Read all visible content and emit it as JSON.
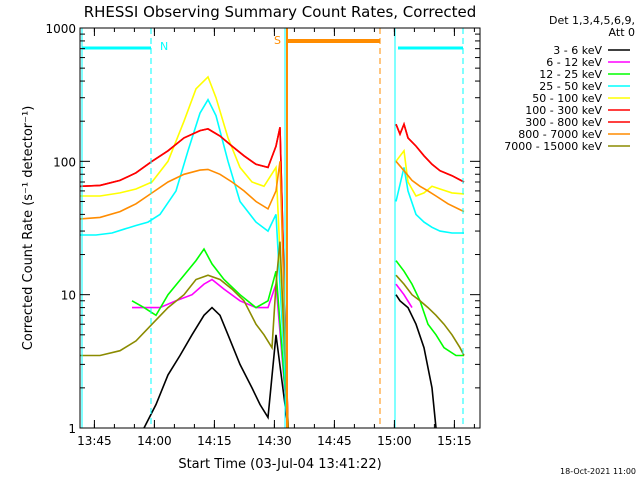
{
  "chart_data": {
    "type": "line",
    "title": "RHESSI Observing Summary Count Rates, Corrected",
    "xlabel": "Start Time (03-Jul-04 13:41:22)",
    "ylabel": "Corrected Count Rate (s⁻¹ detector⁻¹)",
    "yscale": "log",
    "ylim": [
      1,
      1000
    ],
    "xlim_minutes": [
      0,
      100
    ],
    "x_ticks": [
      {
        "label": "13:45",
        "t": 3.6
      },
      {
        "label": "14:00",
        "t": 18.6
      },
      {
        "label": "14:15",
        "t": 33.6
      },
      {
        "label": "14:30",
        "t": 48.6
      },
      {
        "label": "14:45",
        "t": 63.6
      },
      {
        "label": "15:00",
        "t": 78.6
      },
      {
        "label": "15:15",
        "t": 93.6
      }
    ],
    "y_ticks": [
      {
        "label": "1",
        "v": 1
      },
      {
        "label": "10",
        "v": 10
      },
      {
        "label": "100",
        "v": 100
      },
      {
        "label": "1000",
        "v": 1000
      }
    ],
    "legend_header": [
      "Det 1,3,4,5,6,9,",
      "Att 0"
    ],
    "legend_position": "right",
    "series": [
      {
        "name": "3 - 6 keV",
        "color": "#000000",
        "points": [
          [
            16,
            1
          ],
          [
            19,
            1.5
          ],
          [
            22,
            2.5
          ],
          [
            25,
            3.5
          ],
          [
            28,
            5
          ],
          [
            31,
            7
          ],
          [
            33,
            8
          ],
          [
            35,
            7
          ],
          [
            37,
            5
          ],
          [
            40,
            3
          ],
          [
            43,
            2
          ],
          [
            45,
            1.5
          ],
          [
            47,
            1.2
          ],
          [
            49,
            5
          ],
          [
            52,
            1
          ],
          [
            78,
            null
          ],
          [
            79,
            10
          ],
          [
            80,
            9
          ],
          [
            82,
            8
          ],
          [
            84,
            6
          ],
          [
            86,
            4
          ],
          [
            88,
            2
          ],
          [
            89,
            1
          ]
        ]
      },
      {
        "name": "6 - 12 keV",
        "color": "#ff00ff",
        "points": [
          [
            13,
            8
          ],
          [
            16,
            8
          ],
          [
            20,
            8
          ],
          [
            24,
            9
          ],
          [
            28,
            10
          ],
          [
            31,
            12
          ],
          [
            33,
            13
          ],
          [
            36,
            11
          ],
          [
            40,
            9
          ],
          [
            44,
            8
          ],
          [
            47,
            8
          ],
          [
            49,
            12
          ],
          [
            52,
            1
          ],
          [
            78,
            null
          ],
          [
            79,
            12
          ],
          [
            81,
            10
          ],
          [
            83,
            8
          ]
        ]
      },
      {
        "name": "12 - 25 keV",
        "color": "#00ff00",
        "points": [
          [
            13,
            9
          ],
          [
            16,
            8
          ],
          [
            19,
            7
          ],
          [
            22,
            10
          ],
          [
            26,
            14
          ],
          [
            29,
            18
          ],
          [
            31,
            22
          ],
          [
            33,
            17
          ],
          [
            36,
            13
          ],
          [
            40,
            10
          ],
          [
            44,
            8
          ],
          [
            47,
            9
          ],
          [
            49,
            15
          ],
          [
            52,
            1
          ],
          [
            78,
            null
          ],
          [
            79,
            18
          ],
          [
            81,
            15
          ],
          [
            83,
            12
          ],
          [
            85,
            9
          ],
          [
            87,
            6
          ],
          [
            89,
            5
          ],
          [
            91,
            4
          ],
          [
            94,
            3.5
          ],
          [
            96,
            3.5
          ]
        ]
      },
      {
        "name": "25 - 50 keV",
        "color": "#00ffff",
        "points": [
          [
            0,
            28
          ],
          [
            4,
            28
          ],
          [
            8,
            29
          ],
          [
            11,
            31
          ],
          [
            14,
            33
          ],
          [
            17,
            35
          ],
          [
            20,
            40
          ],
          [
            24,
            60
          ],
          [
            27,
            120
          ],
          [
            30,
            230
          ],
          [
            32,
            290
          ],
          [
            34,
            220
          ],
          [
            37,
            100
          ],
          [
            40,
            50
          ],
          [
            44,
            35
          ],
          [
            47,
            30
          ],
          [
            49,
            40
          ],
          [
            52,
            1
          ],
          [
            78,
            null
          ],
          [
            79,
            50
          ],
          [
            81,
            90
          ],
          [
            82,
            60
          ],
          [
            84,
            40
          ],
          [
            86,
            35
          ],
          [
            88,
            32
          ],
          [
            90,
            30
          ],
          [
            93,
            29
          ],
          [
            96,
            29
          ]
        ]
      },
      {
        "name": "50 - 100 keV",
        "color": "#ffff00",
        "points": [
          [
            0,
            55
          ],
          [
            5,
            55
          ],
          [
            10,
            58
          ],
          [
            14,
            62
          ],
          [
            18,
            70
          ],
          [
            22,
            100
          ],
          [
            26,
            200
          ],
          [
            29,
            350
          ],
          [
            32,
            430
          ],
          [
            34,
            300
          ],
          [
            37,
            150
          ],
          [
            40,
            90
          ],
          [
            43,
            70
          ],
          [
            46,
            65
          ],
          [
            49,
            90
          ],
          [
            52,
            1
          ],
          [
            78,
            null
          ],
          [
            79,
            100
          ],
          [
            81,
            120
          ],
          [
            82,
            70
          ],
          [
            84,
            55
          ],
          [
            86,
            58
          ],
          [
            88,
            65
          ],
          [
            90,
            62
          ],
          [
            93,
            58
          ],
          [
            96,
            57
          ]
        ]
      },
      {
        "name": "100 - 300 keV",
        "color": "#ff0000",
        "points": [
          [
            0,
            65
          ],
          [
            5,
            66
          ],
          [
            10,
            72
          ],
          [
            14,
            82
          ],
          [
            18,
            100
          ],
          [
            22,
            120
          ],
          [
            26,
            150
          ],
          [
            30,
            170
          ],
          [
            32,
            175
          ],
          [
            35,
            155
          ],
          [
            38,
            130
          ],
          [
            41,
            110
          ],
          [
            44,
            95
          ],
          [
            47,
            90
          ],
          [
            49,
            130
          ],
          [
            50,
            180
          ],
          [
            52,
            1
          ],
          [
            78,
            null
          ],
          [
            79,
            190
          ],
          [
            80,
            160
          ],
          [
            81,
            190
          ],
          [
            82,
            150
          ],
          [
            84,
            130
          ],
          [
            86,
            110
          ],
          [
            88,
            95
          ],
          [
            90,
            85
          ],
          [
            93,
            78
          ],
          [
            96,
            70
          ]
        ]
      },
      {
        "name": "300 - 800 keV",
        "color": "#ff0000",
        "points": [
          [
            0,
            65
          ],
          [
            5,
            66
          ],
          [
            10,
            72
          ],
          [
            14,
            82
          ],
          [
            18,
            100
          ],
          [
            22,
            120
          ],
          [
            26,
            150
          ],
          [
            30,
            170
          ],
          [
            32,
            175
          ],
          [
            35,
            155
          ],
          [
            38,
            130
          ],
          [
            41,
            110
          ],
          [
            44,
            95
          ],
          [
            47,
            90
          ],
          [
            49,
            130
          ],
          [
            50,
            180
          ],
          [
            52,
            1
          ],
          [
            78,
            null
          ],
          [
            79,
            190
          ],
          [
            80,
            160
          ],
          [
            81,
            190
          ],
          [
            82,
            150
          ],
          [
            84,
            130
          ],
          [
            86,
            110
          ],
          [
            88,
            95
          ],
          [
            90,
            85
          ],
          [
            93,
            78
          ],
          [
            96,
            70
          ]
        ]
      },
      {
        "name": "800 - 7000 keV",
        "color": "#ff8c00",
        "points": [
          [
            0,
            37
          ],
          [
            5,
            38
          ],
          [
            10,
            42
          ],
          [
            14,
            48
          ],
          [
            18,
            58
          ],
          [
            22,
            70
          ],
          [
            26,
            80
          ],
          [
            30,
            86
          ],
          [
            32,
            87
          ],
          [
            35,
            80
          ],
          [
            38,
            70
          ],
          [
            41,
            60
          ],
          [
            44,
            50
          ],
          [
            47,
            44
          ],
          [
            49,
            60
          ],
          [
            50,
            100
          ],
          [
            52,
            1
          ],
          [
            78,
            null
          ],
          [
            79,
            100
          ],
          [
            81,
            85
          ],
          [
            83,
            72
          ],
          [
            85,
            65
          ],
          [
            87,
            60
          ],
          [
            89,
            55
          ],
          [
            92,
            48
          ],
          [
            96,
            42
          ]
        ]
      },
      {
        "name": "7000 - 15000 keV",
        "color": "#8b8b00",
        "points": [
          [
            0,
            3.5
          ],
          [
            5,
            3.5
          ],
          [
            10,
            3.8
          ],
          [
            14,
            4.5
          ],
          [
            18,
            6
          ],
          [
            22,
            8
          ],
          [
            26,
            10
          ],
          [
            29,
            13
          ],
          [
            32,
            14
          ],
          [
            35,
            13
          ],
          [
            38,
            11
          ],
          [
            41,
            9
          ],
          [
            44,
            6
          ],
          [
            46,
            5
          ],
          [
            48,
            4
          ],
          [
            49,
            12
          ],
          [
            50,
            25
          ],
          [
            52,
            1
          ],
          [
            78,
            null
          ],
          [
            79,
            14
          ],
          [
            81,
            12
          ],
          [
            83,
            10
          ],
          [
            85,
            9
          ],
          [
            87,
            8
          ],
          [
            89,
            7
          ],
          [
            91,
            6
          ],
          [
            93,
            5
          ],
          [
            95,
            4
          ],
          [
            96,
            3.5
          ]
        ]
      }
    ],
    "annotations": [
      {
        "label": "N",
        "color": "#00ffff",
        "type": "marker"
      },
      {
        "label": "S",
        "color": "#ff8c00",
        "type": "marker"
      }
    ]
  },
  "footer_timestamp": "18-Oct-2021 11:00"
}
